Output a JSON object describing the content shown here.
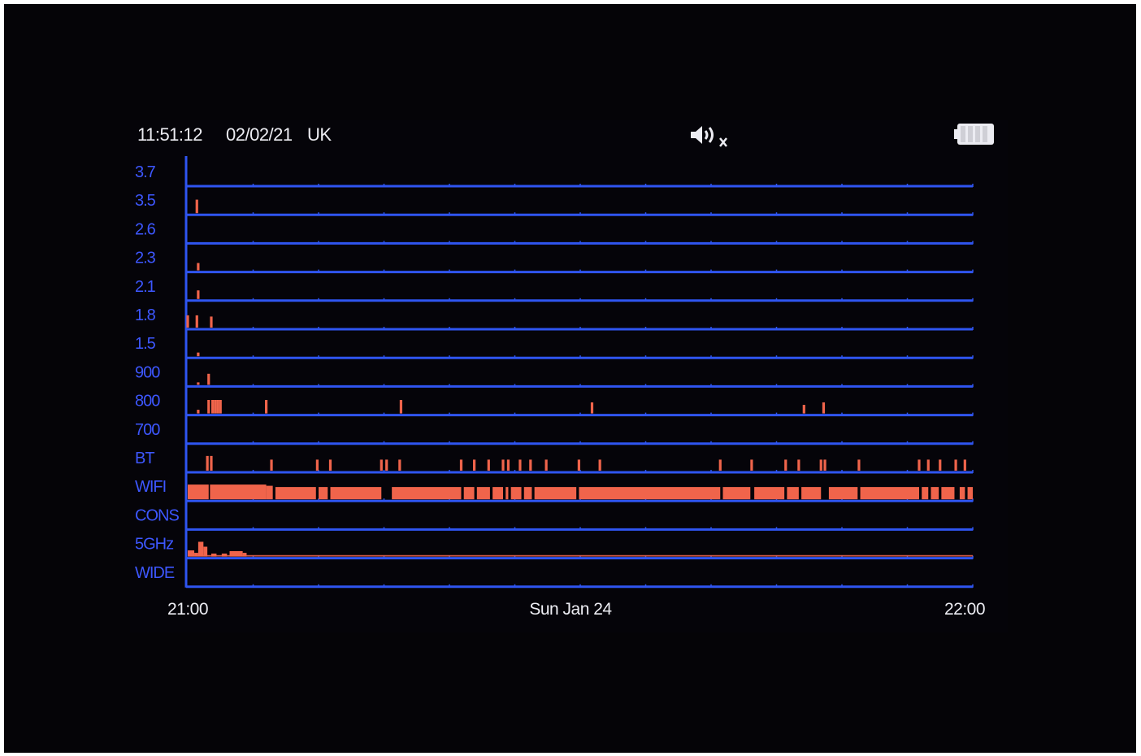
{
  "header": {
    "time": "11:51:12",
    "date": "02/02/21",
    "region": "UK",
    "sound_icon": "speaker-muted-icon",
    "battery_icon": "battery-full-icon",
    "battery_level_pct": 100
  },
  "colors": {
    "background": "#050407",
    "grid": "#2f55f0",
    "label": "#3d57ff",
    "activity": "#f0644b",
    "text": "#ececf2"
  },
  "chart_data": {
    "type": "bar",
    "title": "",
    "xlabel": "Sun Jan 24",
    "ylabel": "",
    "x_ticks": [
      "21:00",
      "22:00"
    ],
    "xlim": [
      "21:00",
      "22:00"
    ],
    "ylim": [
      0,
      1
    ],
    "grid": true,
    "legend": "none",
    "rows": [
      "3.7",
      "3.5",
      "2.6",
      "2.3",
      "2.1",
      "1.8",
      "1.5",
      "900",
      "800",
      "700",
      "BT",
      "WIFI",
      "CONS",
      "5GHz",
      "WIDE"
    ],
    "series": [
      {
        "name": "3.7",
        "points": []
      },
      {
        "name": "3.5",
        "points": [
          {
            "t": 0.7,
            "level": 0.55
          }
        ]
      },
      {
        "name": "2.6",
        "points": []
      },
      {
        "name": "2.3",
        "points": [
          {
            "t": 0.8,
            "level": 0.3
          }
        ]
      },
      {
        "name": "2.1",
        "points": [
          {
            "t": 0.8,
            "level": 0.35
          }
        ]
      },
      {
        "name": "1.8",
        "points": [
          {
            "t": 0.0,
            "level": 0.5
          },
          {
            "t": 0.7,
            "level": 0.5
          },
          {
            "t": 1.8,
            "level": 0.45
          }
        ]
      },
      {
        "name": "1.5",
        "points": [
          {
            "t": 0.8,
            "level": 0.15
          }
        ]
      },
      {
        "name": "900",
        "points": [
          {
            "t": 0.8,
            "level": 0.1
          },
          {
            "t": 1.6,
            "level": 0.45
          }
        ]
      },
      {
        "name": "800",
        "points": [
          {
            "t": 0.8,
            "level": 0.15
          },
          {
            "t": 1.6,
            "level": 0.55
          },
          {
            "t": 1.9,
            "level": 0.55
          },
          {
            "t": 2.1,
            "level": 0.55
          },
          {
            "t": 2.3,
            "level": 0.55
          },
          {
            "t": 2.5,
            "level": 0.55
          },
          {
            "t": 6.0,
            "level": 0.55
          },
          {
            "t": 16.3,
            "level": 0.55
          },
          {
            "t": 30.9,
            "level": 0.45
          },
          {
            "t": 47.1,
            "level": 0.35
          },
          {
            "t": 48.6,
            "level": 0.45
          }
        ]
      },
      {
        "name": "700",
        "points": []
      },
      {
        "name": "BT",
        "points": [
          {
            "t": 1.5,
            "level": 0.6
          },
          {
            "t": 1.8,
            "level": 0.6
          },
          {
            "t": 6.4,
            "level": 0.45
          },
          {
            "t": 9.9,
            "level": 0.45
          },
          {
            "t": 10.9,
            "level": 0.45
          },
          {
            "t": 14.8,
            "level": 0.45
          },
          {
            "t": 15.2,
            "level": 0.45
          },
          {
            "t": 16.2,
            "level": 0.45
          },
          {
            "t": 20.9,
            "level": 0.45
          },
          {
            "t": 21.9,
            "level": 0.45
          },
          {
            "t": 23.0,
            "level": 0.45
          },
          {
            "t": 24.1,
            "level": 0.45
          },
          {
            "t": 24.5,
            "level": 0.45
          },
          {
            "t": 25.4,
            "level": 0.45
          },
          {
            "t": 26.2,
            "level": 0.45
          },
          {
            "t": 27.4,
            "level": 0.45
          },
          {
            "t": 29.9,
            "level": 0.45
          },
          {
            "t": 31.5,
            "level": 0.45
          },
          {
            "t": 40.7,
            "level": 0.45
          },
          {
            "t": 43.1,
            "level": 0.45
          },
          {
            "t": 45.7,
            "level": 0.45
          },
          {
            "t": 46.7,
            "level": 0.45
          },
          {
            "t": 48.4,
            "level": 0.45
          },
          {
            "t": 48.7,
            "level": 0.45
          },
          {
            "t": 51.3,
            "level": 0.45
          },
          {
            "t": 55.9,
            "level": 0.45
          },
          {
            "t": 56.6,
            "level": 0.45
          },
          {
            "t": 57.5,
            "level": 0.45
          },
          {
            "t": 58.7,
            "level": 0.45
          },
          {
            "t": 59.4,
            "level": 0.45
          }
        ]
      },
      {
        "name": "WIFI",
        "segments": [
          {
            "t0": 0.0,
            "t1": 1.6,
            "level": 0.6
          },
          {
            "t0": 1.7,
            "t1": 6.0,
            "level": 0.6
          },
          {
            "t0": 6.0,
            "t1": 6.5,
            "level": 0.55
          },
          {
            "t0": 6.7,
            "t1": 9.8,
            "level": 0.5
          },
          {
            "t0": 10.0,
            "t1": 10.7,
            "level": 0.5
          },
          {
            "t0": 10.9,
            "t1": 14.8,
            "level": 0.5
          },
          {
            "t0": 15.6,
            "t1": 20.9,
            "level": 0.5
          },
          {
            "t0": 21.1,
            "t1": 21.9,
            "level": 0.5
          },
          {
            "t0": 22.1,
            "t1": 23.1,
            "level": 0.5
          },
          {
            "t0": 23.3,
            "t1": 24.1,
            "level": 0.5
          },
          {
            "t0": 24.3,
            "t1": 24.5,
            "level": 0.5
          },
          {
            "t0": 24.7,
            "t1": 25.5,
            "level": 0.5
          },
          {
            "t0": 25.7,
            "t1": 26.3,
            "level": 0.5
          },
          {
            "t0": 26.5,
            "t1": 29.7,
            "level": 0.5
          },
          {
            "t0": 29.9,
            "t1": 40.7,
            "level": 0.5
          },
          {
            "t0": 40.9,
            "t1": 43.0,
            "level": 0.5
          },
          {
            "t0": 43.3,
            "t1": 45.6,
            "level": 0.5
          },
          {
            "t0": 45.8,
            "t1": 46.7,
            "level": 0.5
          },
          {
            "t0": 46.9,
            "t1": 48.4,
            "level": 0.5
          },
          {
            "t0": 49.0,
            "t1": 51.2,
            "level": 0.5
          },
          {
            "t0": 51.4,
            "t1": 55.9,
            "level": 0.5
          },
          {
            "t0": 56.1,
            "t1": 56.6,
            "level": 0.5
          },
          {
            "t0": 56.8,
            "t1": 57.4,
            "level": 0.5
          },
          {
            "t0": 57.6,
            "t1": 58.6,
            "level": 0.5
          },
          {
            "t0": 59.0,
            "t1": 59.4,
            "level": 0.5
          },
          {
            "t0": 59.6,
            "t1": 60.0,
            "level": 0.5
          }
        ]
      },
      {
        "name": "CONS",
        "points": []
      },
      {
        "name": "5GHz",
        "bars": [
          {
            "t0": 0.0,
            "t1": 0.5,
            "level": 0.25
          },
          {
            "t0": 0.5,
            "t1": 0.8,
            "level": 0.15
          },
          {
            "t0": 0.8,
            "t1": 1.2,
            "level": 0.6
          },
          {
            "t0": 1.2,
            "t1": 1.5,
            "level": 0.4
          },
          {
            "t0": 1.8,
            "t1": 2.2,
            "level": 0.12
          },
          {
            "t0": 2.6,
            "t1": 3.0,
            "level": 0.12
          },
          {
            "t0": 3.2,
            "t1": 4.2,
            "level": 0.22
          },
          {
            "t0": 4.2,
            "t1": 4.5,
            "level": 0.15
          }
        ],
        "baseline_level": 0.06
      },
      {
        "name": "WIDE",
        "points": []
      }
    ]
  }
}
